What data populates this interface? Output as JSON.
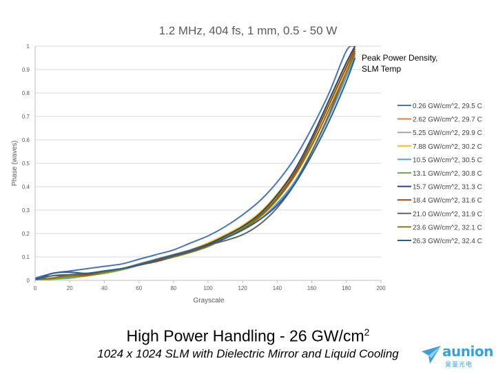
{
  "chart_data": {
    "type": "line",
    "title": "1.2 MHz, 404 fs, 1 mm, 0.5 - 50 W",
    "xlabel": "Grayscale",
    "ylabel": "Phase (waves)",
    "xlim": [
      0,
      200
    ],
    "ylim": [
      0,
      1
    ],
    "x_ticks": [
      0,
      20,
      40,
      60,
      80,
      100,
      120,
      140,
      160,
      180,
      200
    ],
    "y_ticks": [
      0,
      0.1,
      0.2,
      0.3,
      0.4,
      0.5,
      0.6,
      0.7,
      0.8,
      0.9,
      1
    ],
    "grid": "horizontal",
    "legend_title": "Peak Power Density,\nSLM Temp",
    "legend_position": "right",
    "x": [
      0,
      10,
      20,
      30,
      40,
      50,
      60,
      70,
      80,
      90,
      100,
      110,
      120,
      130,
      140,
      150,
      160,
      170,
      180,
      185
    ],
    "series": [
      {
        "name": "0.26 GW/cm^2, 29.5 C",
        "color": "#4472c4",
        "values": [
          0.01,
          0.03,
          0.04,
          0.05,
          0.06,
          0.07,
          0.09,
          0.11,
          0.13,
          0.16,
          0.19,
          0.23,
          0.28,
          0.34,
          0.42,
          0.52,
          0.65,
          0.8,
          0.98,
          1.0
        ]
      },
      {
        "name": "2.62 GW/cm^2, 29.7 C",
        "color": "#ed7d31",
        "values": [
          0.0,
          0.005,
          0.01,
          0.02,
          0.03,
          0.045,
          0.065,
          0.085,
          0.1,
          0.12,
          0.145,
          0.18,
          0.22,
          0.28,
          0.36,
          0.46,
          0.6,
          0.76,
          0.92,
          1.0
        ]
      },
      {
        "name": "5.25 GW/cm^2, 29.9 C",
        "color": "#a5a5a5",
        "values": [
          0.0,
          0.01,
          0.02,
          0.025,
          0.035,
          0.05,
          0.065,
          0.085,
          0.105,
          0.125,
          0.15,
          0.18,
          0.215,
          0.26,
          0.325,
          0.42,
          0.55,
          0.7,
          0.88,
          0.97
        ]
      },
      {
        "name": "7.88 GW/cm^2, 30.2 C",
        "color": "#ffc000",
        "values": [
          0.0,
          0.005,
          0.01,
          0.02,
          0.03,
          0.045,
          0.065,
          0.085,
          0.105,
          0.13,
          0.16,
          0.195,
          0.235,
          0.29,
          0.37,
          0.47,
          0.6,
          0.76,
          0.92,
          1.0
        ]
      },
      {
        "name": "10.5 GW/cm^2, 30.5 C",
        "color": "#5b9bd5",
        "values": [
          0.0,
          0.01,
          0.015,
          0.025,
          0.035,
          0.05,
          0.065,
          0.085,
          0.105,
          0.125,
          0.15,
          0.18,
          0.215,
          0.26,
          0.33,
          0.42,
          0.55,
          0.7,
          0.87,
          0.96
        ]
      },
      {
        "name": "13.1 GW/cm^2, 30.8 C",
        "color": "#70ad47",
        "values": [
          0.0,
          0.005,
          0.01,
          0.02,
          0.03,
          0.045,
          0.065,
          0.085,
          0.105,
          0.125,
          0.15,
          0.185,
          0.225,
          0.28,
          0.355,
          0.45,
          0.58,
          0.73,
          0.89,
          0.98
        ]
      },
      {
        "name": "15.7 GW/cm^2, 31.3 C",
        "color": "#264478",
        "values": [
          0.005,
          0.02,
          0.02,
          0.025,
          0.04,
          0.05,
          0.065,
          0.085,
          0.105,
          0.13,
          0.155,
          0.19,
          0.23,
          0.285,
          0.365,
          0.47,
          0.61,
          0.77,
          0.93,
          1.0
        ]
      },
      {
        "name": "18.4 GW/cm^2, 31.6 C",
        "color": "#9e480e",
        "values": [
          0.0,
          0.01,
          0.02,
          0.025,
          0.035,
          0.05,
          0.065,
          0.08,
          0.1,
          0.12,
          0.145,
          0.18,
          0.22,
          0.275,
          0.35,
          0.455,
          0.595,
          0.75,
          0.91,
          0.99
        ]
      },
      {
        "name": "21.0 GW/cm^2, 31.9 C",
        "color": "#636363",
        "values": [
          0.0,
          0.02,
          0.025,
          0.03,
          0.04,
          0.05,
          0.07,
          0.09,
          0.11,
          0.13,
          0.15,
          0.17,
          0.195,
          0.24,
          0.31,
          0.41,
          0.55,
          0.71,
          0.89,
          0.97
        ]
      },
      {
        "name": "23.6 GW/cm^2, 32.1 C",
        "color": "#997300",
        "values": [
          0.0,
          0.01,
          0.02,
          0.02,
          0.035,
          0.05,
          0.065,
          0.085,
          0.1,
          0.12,
          0.145,
          0.18,
          0.22,
          0.27,
          0.345,
          0.445,
          0.575,
          0.73,
          0.89,
          0.98
        ]
      },
      {
        "name": "26.3 GW/cm^2, 32.4 C",
        "color": "#255e91",
        "values": [
          0.0,
          0.03,
          0.035,
          0.03,
          0.04,
          0.05,
          0.065,
          0.085,
          0.105,
          0.125,
          0.15,
          0.18,
          0.215,
          0.26,
          0.32,
          0.41,
          0.535,
          0.68,
          0.85,
          0.95
        ]
      }
    ]
  },
  "caption": {
    "main_text": "High Power Handling - 26 GW/cm",
    "main_superscript": "2",
    "sub_text": "1024 x 1024 SLM with Dielectric Mirror and Liquid Cooling"
  },
  "logo": {
    "name": "aunion",
    "cjk_text": "昊量光电",
    "color": "#3aa0d8"
  }
}
